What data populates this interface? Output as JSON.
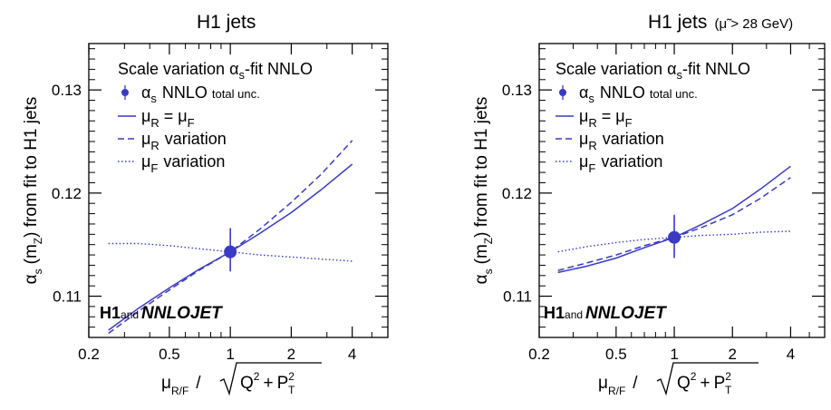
{
  "colors": {
    "series": "#3a3ac7",
    "axis": "#000000"
  },
  "chart_data": [
    {
      "type": "line",
      "title": "H1 jets",
      "title_suffix": "",
      "xscale": "log",
      "xlim": [
        0.2,
        6
      ],
      "ylim": [
        0.106,
        0.1345
      ],
      "xticks": [
        {
          "v": 0.2,
          "label": "0.2"
        },
        {
          "v": 0.5,
          "label": "0.5"
        },
        {
          "v": 1,
          "label": "1"
        },
        {
          "v": 2,
          "label": "2"
        },
        {
          "v": 4,
          "label": "4"
        }
      ],
      "yticks": [
        {
          "v": 0.11,
          "label": "0.11"
        },
        {
          "v": 0.12,
          "label": "0.12"
        },
        {
          "v": 0.13,
          "label": "0.13"
        }
      ],
      "xlabel": {
        "mu": "μ",
        "sub": "R/F",
        "slash": "/",
        "q": "Q",
        "qsup": "2",
        "plus": "+",
        "p": "P",
        "psub": "T",
        "psup": "2"
      },
      "ylabel": {
        "alpha": "α",
        "alpha_sub": "s",
        "open": "(m",
        "z_sub": "Z",
        "rest": ") from fit to H1 jets"
      },
      "legend": {
        "title_prefix": "Scale variation α",
        "title_sub": "s",
        "title_suffix": "-fit NNLO",
        "point_alpha": "α",
        "point_sub": "s",
        "point_text": "NNLO",
        "point_small": "total unc.",
        "mu_symbol": "μ",
        "r_sub": "R",
        "f_sub": "F",
        "equals": "=",
        "variation": "variation"
      },
      "brand": {
        "h1": "H1",
        "and": "and",
        "nnlojet": "NNLOJET"
      },
      "point": {
        "x": 1,
        "y": 0.1143,
        "yerr": [
          0.0019,
          0.0023
        ]
      },
      "series": [
        {
          "name": "μR = μF",
          "dash": "solid",
          "x": [
            0.25,
            0.35,
            0.5,
            0.7,
            1,
            1.4,
            2,
            2.8,
            4
          ],
          "y": [
            0.1067,
            0.1088,
            0.1108,
            0.1126,
            0.1143,
            0.1161,
            0.1181,
            0.1203,
            0.1228
          ]
        },
        {
          "name": "μR variation",
          "dash": "dashed",
          "x": [
            0.25,
            0.35,
            0.5,
            0.7,
            1,
            1.4,
            2,
            2.8,
            4
          ],
          "y": [
            0.1064,
            0.1085,
            0.1106,
            0.1125,
            0.1143,
            0.1165,
            0.1191,
            0.1218,
            0.1251
          ]
        },
        {
          "name": "μF variation",
          "dash": "dotted",
          "x": [
            0.25,
            0.35,
            0.5,
            0.7,
            1,
            1.4,
            2,
            2.8,
            4
          ],
          "y": [
            0.1151,
            0.1151,
            0.1149,
            0.1146,
            0.1143,
            0.114,
            0.1138,
            0.1136,
            0.1134
          ]
        }
      ]
    },
    {
      "type": "line",
      "title": "H1 jets",
      "title_suffix": "(μ̃ > 28 GeV)",
      "xscale": "log",
      "xlim": [
        0.2,
        6
      ],
      "ylim": [
        0.106,
        0.1345
      ],
      "xticks": [
        {
          "v": 0.2,
          "label": "0.2"
        },
        {
          "v": 0.5,
          "label": "0.5"
        },
        {
          "v": 1,
          "label": "1"
        },
        {
          "v": 2,
          "label": "2"
        },
        {
          "v": 4,
          "label": "4"
        }
      ],
      "yticks": [
        {
          "v": 0.11,
          "label": "0.11"
        },
        {
          "v": 0.12,
          "label": "0.12"
        },
        {
          "v": 0.13,
          "label": "0.13"
        }
      ],
      "xlabel": {
        "mu": "μ",
        "sub": "R/F",
        "slash": "/",
        "q": "Q",
        "qsup": "2",
        "plus": "+",
        "p": "P",
        "psub": "T",
        "psup": "2"
      },
      "ylabel": {
        "alpha": "α",
        "alpha_sub": "s",
        "open": "(m",
        "z_sub": "Z",
        "rest": ") from fit to H1 jets"
      },
      "legend": {
        "title_prefix": "Scale variation α",
        "title_sub": "s",
        "title_suffix": "-fit NNLO",
        "point_alpha": "α",
        "point_sub": "s",
        "point_text": "NNLO",
        "point_small": "total unc.",
        "mu_symbol": "μ",
        "r_sub": "R",
        "f_sub": "F",
        "equals": "=",
        "variation": "variation"
      },
      "brand": {
        "h1": "H1",
        "and": "and",
        "nnlojet": "NNLOJET"
      },
      "point": {
        "x": 1,
        "y": 0.1157,
        "yerr": [
          0.002,
          0.0022
        ]
      },
      "series": [
        {
          "name": "μR = μF",
          "dash": "solid",
          "x": [
            0.25,
            0.35,
            0.5,
            0.7,
            1,
            1.4,
            2,
            2.8,
            4
          ],
          "y": [
            0.1123,
            0.1129,
            0.1137,
            0.1147,
            0.1157,
            0.117,
            0.1185,
            0.1204,
            0.1226
          ]
        },
        {
          "name": "μR variation",
          "dash": "dashed",
          "x": [
            0.25,
            0.35,
            0.5,
            0.7,
            1,
            1.4,
            2,
            2.8,
            4
          ],
          "y": [
            0.1125,
            0.1132,
            0.114,
            0.1149,
            0.1157,
            0.1167,
            0.1179,
            0.1195,
            0.1215
          ]
        },
        {
          "name": "μF variation",
          "dash": "dotted",
          "x": [
            0.25,
            0.35,
            0.5,
            0.7,
            1,
            1.4,
            2,
            2.8,
            4
          ],
          "y": [
            0.1143,
            0.1148,
            0.1152,
            0.1155,
            0.1157,
            0.1159,
            0.116,
            0.1162,
            0.1163
          ]
        }
      ]
    }
  ]
}
